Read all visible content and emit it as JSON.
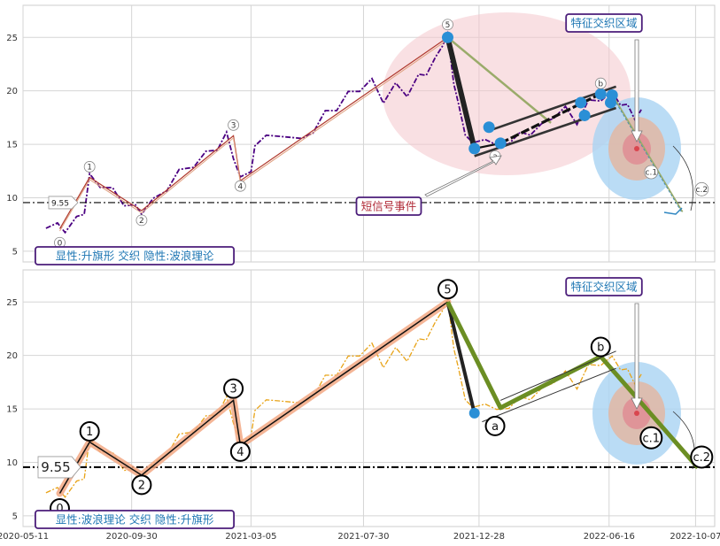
{
  "chart_data": [
    {
      "type": "line",
      "panel": "top",
      "ylim": [
        4,
        28
      ],
      "yticks": [
        5,
        10,
        15,
        20,
        25
      ],
      "grid": true,
      "series": [
        {
          "color": "#4b0082",
          "style": "dash-dot",
          "x": [
            "2020-06-10",
            "2020-06-25",
            "2020-07-05",
            "2020-07-20",
            "2020-07-30",
            "2020-08-06",
            "2020-08-20",
            "2020-09-05",
            "2020-09-20",
            "2020-10-05",
            "2020-10-13",
            "2020-10-28",
            "2020-11-15",
            "2020-12-01",
            "2020-12-20",
            "2021-01-05",
            "2021-01-20",
            "2021-02-01",
            "2021-02-10",
            "2021-02-19",
            "2021-03-05",
            "2021-03-10",
            "2021-03-25",
            "2021-04-10",
            "2021-04-25",
            "2021-05-10",
            "2021-05-25",
            "2021-06-10",
            "2021-06-25",
            "2021-07-10",
            "2021-07-25",
            "2021-08-10",
            "2021-08-25",
            "2021-09-10",
            "2021-09-25",
            "2021-10-10",
            "2021-10-20",
            "2021-11-01",
            "2021-11-10",
            "2021-11-17",
            "2021-11-25",
            "2021-12-01",
            "2021-12-10",
            "2021-12-20",
            "2022-01-05",
            "2022-01-20",
            "2022-02-05",
            "2022-02-20",
            "2022-03-05",
            "2022-03-20",
            "2022-04-05",
            "2022-04-20",
            "2022-05-05",
            "2022-05-20",
            "2022-06-05",
            "2022-06-20",
            "2022-07-01",
            "2022-07-10",
            "2022-07-20",
            "2022-07-28"
          ],
          "y": [
            7.5,
            7.3,
            7.1,
            7.9,
            8.8,
            11.9,
            11.3,
            10.6,
            9.6,
            9.0,
            8.8,
            9.6,
            11.0,
            12.3,
            13.2,
            14.0,
            14.8,
            15.8,
            14.0,
            11.6,
            12.8,
            14.5,
            16.2,
            15.4,
            16.0,
            15.2,
            16.4,
            17.8,
            18.5,
            19.6,
            20.3,
            20.8,
            19.2,
            20.4,
            19.8,
            21.2,
            21.8,
            22.8,
            24.5,
            25.0,
            21.0,
            18.5,
            16.2,
            14.8,
            15.8,
            14.6,
            15.4,
            15.8,
            16.2,
            16.6,
            17.8,
            18.2,
            17.2,
            18.8,
            19.4,
            19.6,
            19.0,
            18.4,
            17.6,
            17.9
          ]
        }
      ],
      "waves": [
        {
          "label": "0",
          "x": "2020-06-28",
          "y": 5.8
        },
        {
          "label": "1",
          "x": "2020-08-06",
          "y": 12.9
        },
        {
          "label": "2",
          "x": "2020-10-13",
          "y": 7.9
        },
        {
          "label": "3",
          "x": "2021-02-10",
          "y": 16.8
        },
        {
          "label": "4",
          "x": "2021-02-19",
          "y": 11.1
        },
        {
          "label": "5",
          "x": "2021-11-17",
          "y": 26.2
        },
        {
          "label": "a",
          "x": "2022-01-18",
          "y": 13.9
        },
        {
          "label": "b",
          "x": "2022-06-05",
          "y": 20.7
        },
        {
          "label": "c.1",
          "x": "2022-08-10",
          "y": 12.4
        },
        {
          "label": "c.2",
          "x": "2022-10-15",
          "y": 10.8
        }
      ],
      "value_label": "9.55",
      "hline": 9.55,
      "annotations": [
        "特征交织区域",
        "短信号事件",
        "显性:升旗形 交织 隐性:波浪理论"
      ]
    },
    {
      "type": "line",
      "panel": "bottom",
      "ylim": [
        4,
        28
      ],
      "yticks": [
        5,
        10,
        15,
        20,
        25
      ],
      "grid": true,
      "xtick_labels": [
        "2020-05-11",
        "2020-09-30",
        "2021-03-05",
        "2021-07-30",
        "2021-12-28",
        "2022-06-16",
        "2022-10-07"
      ],
      "series": [
        {
          "color": "#e8a317",
          "style": "dash-dot",
          "x": [
            "2020-06-10",
            "2020-06-25",
            "2020-07-05",
            "2020-07-20",
            "2020-07-30",
            "2020-08-06",
            "2020-08-20",
            "2020-09-05",
            "2020-09-20",
            "2020-10-05",
            "2020-10-13",
            "2020-10-28",
            "2020-11-15",
            "2020-12-01",
            "2020-12-20",
            "2021-01-05",
            "2021-01-20",
            "2021-02-01",
            "2021-02-10",
            "2021-02-19",
            "2021-03-05",
            "2021-03-10",
            "2021-03-25",
            "2021-04-10",
            "2021-04-25",
            "2021-05-10",
            "2021-05-25",
            "2021-06-10",
            "2021-06-25",
            "2021-07-10",
            "2021-07-25",
            "2021-08-10",
            "2021-08-25",
            "2021-09-10",
            "2021-09-25",
            "2021-10-10",
            "2021-10-20",
            "2021-11-01",
            "2021-11-10",
            "2021-11-17",
            "2021-11-25",
            "2021-12-01",
            "2021-12-10",
            "2021-12-20",
            "2022-01-05",
            "2022-01-20",
            "2022-02-05",
            "2022-02-20",
            "2022-03-05",
            "2022-03-20",
            "2022-04-05",
            "2022-04-20",
            "2022-05-05",
            "2022-05-20",
            "2022-06-05",
            "2022-06-20",
            "2022-07-01",
            "2022-07-10",
            "2022-07-20",
            "2022-07-28"
          ],
          "y": [
            7.5,
            7.3,
            7.1,
            7.9,
            8.8,
            11.9,
            11.3,
            10.6,
            9.6,
            9.0,
            8.8,
            9.6,
            11.0,
            12.3,
            13.2,
            14.0,
            14.8,
            15.8,
            14.0,
            11.6,
            12.8,
            14.5,
            16.2,
            15.4,
            16.0,
            15.2,
            16.4,
            17.8,
            18.5,
            19.6,
            20.3,
            20.8,
            19.2,
            20.4,
            19.8,
            21.2,
            21.8,
            22.8,
            24.5,
            25.0,
            21.0,
            18.5,
            16.2,
            14.8,
            15.8,
            14.6,
            15.4,
            15.8,
            16.2,
            16.6,
            17.8,
            18.2,
            17.2,
            18.8,
            19.4,
            19.6,
            19.0,
            18.4,
            17.6,
            17.9
          ]
        }
      ],
      "waves": [
        {
          "label": "0",
          "x": "2020-06-28",
          "y": 5.7
        },
        {
          "label": "1",
          "x": "2020-08-06",
          "y": 12.9
        },
        {
          "label": "2",
          "x": "2020-10-13",
          "y": 7.9
        },
        {
          "label": "3",
          "x": "2021-02-10",
          "y": 16.9
        },
        {
          "label": "4",
          "x": "2021-02-19",
          "y": 11.0
        },
        {
          "label": "5",
          "x": "2021-11-17",
          "y": 26.2
        },
        {
          "label": "a",
          "x": "2022-01-18",
          "y": 13.4
        },
        {
          "label": "b",
          "x": "2022-06-05",
          "y": 20.8
        },
        {
          "label": "c.1",
          "x": "2022-08-10",
          "y": 12.3
        },
        {
          "label": "c.2",
          "x": "2022-10-15",
          "y": 10.5
        }
      ],
      "value_label": "9.55",
      "hline": 9.55,
      "annotations": [
        "特征交织区域",
        "显性:波浪理论 交织 隐性:升旗形"
      ]
    }
  ]
}
